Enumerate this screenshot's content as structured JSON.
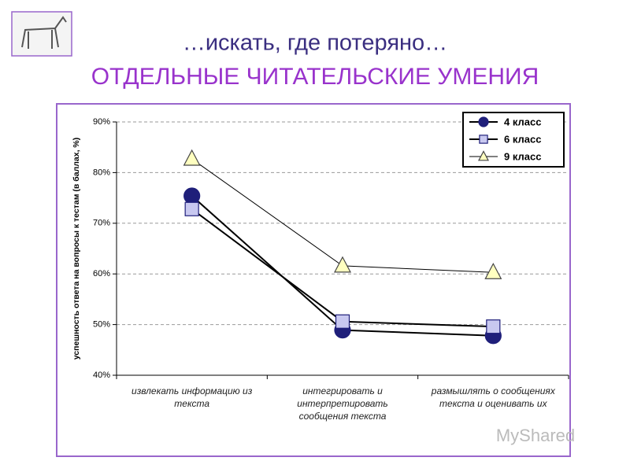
{
  "title": "…искать, где потеряно…",
  "subtitle": "ОТДЕЛЬНЫЕ ЧИТАТЕЛЬСКИЕ УМЕНИЯ",
  "watermark": "MyShared",
  "chart_data": {
    "type": "line",
    "y_label": "успешность ответа на вопросы к тестам (в баллах, %)",
    "categories": [
      "извлекать информацию из текста",
      "интегрировать и интерпретировать сообщения текста",
      "размышлять о сообщениях текста и оценивать их"
    ],
    "series": [
      {
        "name": "4 класс",
        "color": "#1f1f7a",
        "marker": "circle",
        "values": [
          75.4,
          48.9,
          47.8
        ]
      },
      {
        "name": "6 класс",
        "color": "#c8c8f0",
        "marker": "square",
        "values": [
          72.8,
          50.6,
          49.6
        ]
      },
      {
        "name": "9 класс",
        "color": "#ffffc0",
        "marker": "triangle",
        "values": [
          82.7,
          61.6,
          60.3
        ]
      }
    ],
    "ylim": [
      40,
      90
    ],
    "yticks": [
      {
        "value": 40,
        "label": "40%"
      },
      {
        "value": 50,
        "label": "50%"
      },
      {
        "value": 60,
        "label": "60%"
      },
      {
        "value": 70,
        "label": "70%"
      },
      {
        "value": 80,
        "label": "80%"
      },
      {
        "value": 90,
        "label": "90%"
      }
    ],
    "grid": true,
    "legend": "top-right"
  }
}
